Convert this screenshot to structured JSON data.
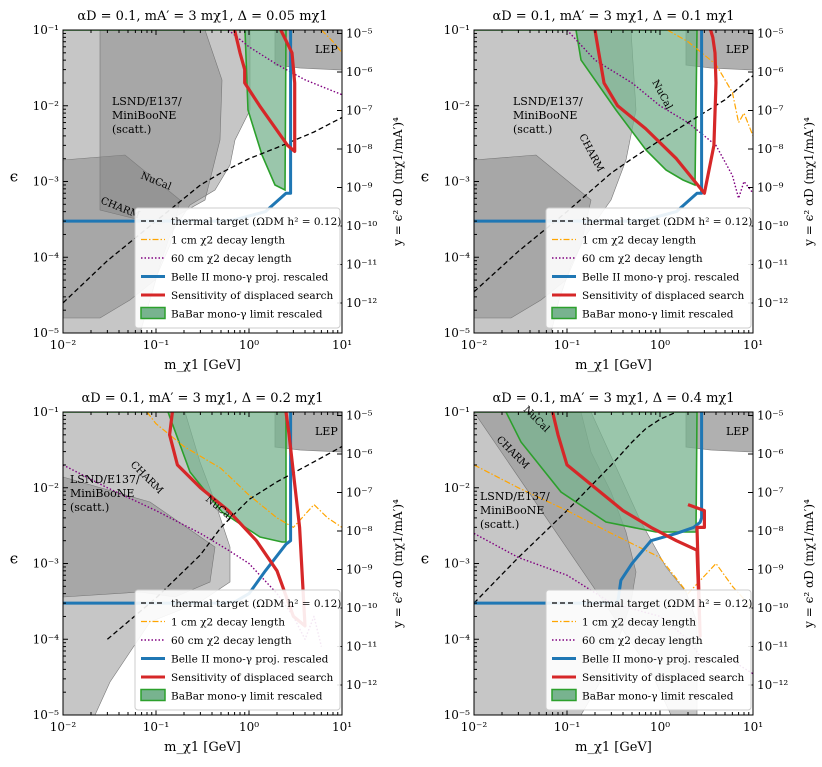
{
  "colors": {
    "belle": "#1f77b4",
    "displaced": "#d62728",
    "babar_fill": "#78b38f",
    "babar_edge": "#2ca02c",
    "thermal": "#000000",
    "decay1": "#ffa500",
    "decay60": "#800080",
    "excluded": "#808080",
    "lep": "#b0b0b0"
  },
  "common": {
    "xlabel": "m_χ1 [GeV]",
    "ylabel_left": "ϵ",
    "ylabel_right": "y = ϵ² αD (mχ1/mA′)⁴",
    "x_ticks": [
      "10⁻²",
      "10⁻¹",
      "10⁰",
      "10¹"
    ],
    "y_ticks": [
      "10⁻⁵",
      "10⁻⁴",
      "10⁻³",
      "10⁻²",
      "10⁻¹"
    ],
    "y2_ticks": [
      "10⁻¹²",
      "10⁻¹¹",
      "10⁻¹⁰",
      "10⁻⁹",
      "10⁻⁸",
      "10⁻⁷",
      "10⁻⁶",
      "10⁻⁵"
    ],
    "region_labels": {
      "lsnd": [
        "LSND/E137/",
        "MiniBooNE",
        "(scatt.)"
      ],
      "charm": "CHARM",
      "nucal": "NuCal",
      "lep": "LEP"
    },
    "legend": [
      {
        "label": "thermal target (ΩDM h² = 0.12)",
        "style": "dashed-black"
      },
      {
        "label": "1 cm χ2 decay length",
        "style": "dashdot-orange"
      },
      {
        "label": "60 cm χ2 decay length",
        "style": "dotted-purple"
      },
      {
        "label": "Belle II mono-γ proj. rescaled",
        "style": "solid-blue"
      },
      {
        "label": "Sensitivity of displaced search",
        "style": "solid-red"
      },
      {
        "label": "BaBar mono-γ limit rescaled",
        "style": "green-fill"
      }
    ]
  },
  "chart_data": [
    {
      "type": "line",
      "title": "αD = 0.1, mA′ = 3 mχ1, Δ = 0.05 mχ1",
      "xscale": "log",
      "yscale": "log",
      "xlim": [
        0.01,
        10
      ],
      "ylim": [
        1e-05,
        0.1
      ],
      "series": [
        {
          "name": "thermal target",
          "x": [
            0.01,
            0.03,
            0.1,
            0.3,
            0.5,
            1,
            2,
            5,
            10
          ],
          "y": [
            2.5e-05,
            9e-05,
            0.0003,
            0.0009,
            0.0013,
            0.002,
            0.0028,
            0.0045,
            0.007
          ]
        },
        {
          "name": "1 cm χ2 decay length",
          "x": [
            6,
            8,
            10
          ],
          "y": [
            0.1,
            0.07,
            0.05
          ]
        },
        {
          "name": "60 cm χ2 decay length",
          "x": [
            0.6,
            1,
            2,
            4,
            10
          ],
          "y": [
            0.1,
            0.06,
            0.035,
            0.022,
            0.014
          ]
        },
        {
          "name": "Belle II mono-γ",
          "x": [
            0.01,
            0.5,
            0.7,
            1,
            1.5,
            2.5,
            2.8,
            2.8
          ],
          "y": [
            0.0003,
            0.0003,
            0.00031,
            0.00035,
            0.0004,
            0.0007,
            0.0007,
            0.1
          ]
        },
        {
          "name": "displaced search",
          "x": [
            0.7,
            0.8,
            0.9,
            0.9,
            1.3,
            2.6,
            3.1,
            3.1,
            2.9,
            2.4,
            2.2
          ],
          "y": [
            0.1,
            0.05,
            0.03,
            0.02,
            0.01,
            0.003,
            0.0025,
            0.02,
            0.05,
            0.08,
            0.1
          ]
        }
      ]
    },
    {
      "type": "line",
      "title": "αD = 0.1, mA′ = 3 mχ1, Δ = 0.1 mχ1",
      "xscale": "log",
      "yscale": "log",
      "xlim": [
        0.01,
        10
      ],
      "ylim": [
        1e-05,
        0.1
      ],
      "series": [
        {
          "name": "thermal target",
          "x": [
            0.01,
            0.03,
            0.1,
            0.3,
            0.5,
            1,
            2,
            5,
            10
          ],
          "y": [
            3.5e-05,
            0.00012,
            0.0004,
            0.0013,
            0.002,
            0.0035,
            0.006,
            0.012,
            0.025
          ]
        },
        {
          "name": "1 cm χ2 decay length",
          "x": [
            1.2,
            2,
            4,
            6,
            7,
            8,
            10
          ],
          "y": [
            0.1,
            0.07,
            0.035,
            0.015,
            0.006,
            0.008,
            0.004
          ]
        },
        {
          "name": "60 cm χ2 decay length",
          "x": [
            0.1,
            0.2,
            0.5,
            1,
            2,
            4,
            6,
            7,
            8,
            10
          ],
          "y": [
            0.1,
            0.04,
            0.02,
            0.01,
            0.006,
            0.003,
            0.0012,
            0.0006,
            0.001,
            0.0007
          ]
        },
        {
          "name": "Belle II mono-γ",
          "x": [
            0.01,
            0.5,
            0.7,
            1,
            1.5,
            2.5,
            2.8,
            2.8
          ],
          "y": [
            0.0003,
            0.0003,
            0.00031,
            0.00035,
            0.0004,
            0.0007,
            0.0007,
            0.1
          ]
        },
        {
          "name": "displaced search",
          "x": [
            0.2,
            0.22,
            0.25,
            0.35,
            0.7,
            1.5,
            3,
            3.8,
            4,
            3.9,
            3.7,
            3.5
          ],
          "y": [
            0.1,
            0.05,
            0.02,
            0.01,
            0.005,
            0.002,
            0.0007,
            0.003,
            0.02,
            0.05,
            0.08,
            0.1
          ]
        }
      ]
    },
    {
      "type": "line",
      "title": "αD = 0.1, mA′ = 3 mχ1, Δ = 0.2 mχ1",
      "xscale": "log",
      "yscale": "log",
      "xlim": [
        0.01,
        10
      ],
      "ylim": [
        1e-05,
        0.1
      ],
      "series": [
        {
          "name": "thermal target",
          "x": [
            0.03,
            0.1,
            0.3,
            0.5,
            1,
            2,
            5,
            10
          ],
          "y": [
            0.0001,
            0.00035,
            0.0013,
            0.003,
            0.007,
            0.012,
            0.022,
            0.035
          ]
        },
        {
          "name": "1 cm χ2 decay length",
          "x": [
            0.08,
            0.1,
            0.2,
            0.5,
            1,
            2,
            3,
            5,
            7,
            10
          ],
          "y": [
            0.1,
            0.07,
            0.035,
            0.018,
            0.008,
            0.004,
            0.003,
            0.006,
            0.004,
            0.003
          ]
        },
        {
          "name": "60 cm χ2 decay length",
          "x": [
            0.01,
            0.03,
            0.1,
            0.3,
            0.6,
            1,
            2,
            3,
            4,
            5,
            6
          ],
          "y": [
            0.02,
            0.01,
            0.005,
            0.0025,
            0.0015,
            0.001,
            0.0004,
            0.0002,
            0.0001,
            0.0002,
            8e-05
          ]
        },
        {
          "name": "Belle II mono-γ",
          "x": [
            0.01,
            0.5,
            0.7,
            1,
            1.5,
            2.5,
            2.8,
            2.8
          ],
          "y": [
            0.0003,
            0.0003,
            0.00031,
            0.0004,
            0.0008,
            0.0018,
            0.002,
            0.1
          ]
        },
        {
          "name": "displaced search",
          "x": [
            0.15,
            0.14,
            0.17,
            0.3,
            0.6,
            1.2,
            2,
            3,
            4,
            3.5,
            2.7,
            2.5
          ],
          "y": [
            0.1,
            0.05,
            0.02,
            0.01,
            0.005,
            0.002,
            0.0008,
            0.0002,
            0.00015,
            0.003,
            0.05,
            0.1
          ]
        }
      ]
    },
    {
      "type": "line",
      "title": "αD = 0.1, mA′ = 3 mχ1, Δ = 0.4 mχ1",
      "xscale": "log",
      "yscale": "log",
      "xlim": [
        0.01,
        10
      ],
      "ylim": [
        1e-05,
        0.1
      ],
      "series": [
        {
          "name": "thermal target",
          "x": [
            0.01,
            0.03,
            0.1,
            0.3,
            0.5,
            0.7,
            1,
            1.5
          ],
          "y": [
            0.0003,
            0.0012,
            0.005,
            0.02,
            0.04,
            0.06,
            0.08,
            0.1
          ]
        },
        {
          "name": "1 cm χ2 decay length",
          "x": [
            0.01,
            0.03,
            0.1,
            0.3,
            1,
            2,
            4,
            6,
            10
          ],
          "y": [
            0.02,
            0.01,
            0.005,
            0.0025,
            0.0012,
            0.0004,
            0.001,
            0.0005,
            0.00025
          ]
        },
        {
          "name": "60 cm χ2 decay length",
          "x": [
            0.01,
            0.03,
            0.1,
            0.3,
            1,
            2,
            3,
            5,
            10
          ],
          "y": [
            0.0025,
            0.0012,
            0.0007,
            0.0003,
            0.0002,
            0.0001,
            5e-05,
            6e-05,
            3.5e-05
          ]
        },
        {
          "name": "Belle II mono-γ",
          "x": [
            0.01,
            0.35,
            0.38,
            0.5,
            0.8,
            1.5,
            2.3,
            2.7,
            2.8,
            2.8
          ],
          "y": [
            0.0003,
            0.0003,
            0.0006,
            0.001,
            0.002,
            0.0025,
            0.003,
            0.0035,
            0.004,
            0.1
          ]
        },
        {
          "name": "displaced search",
          "x": [
            0.07,
            0.08,
            0.1,
            0.2,
            0.4,
            0.8,
            1.5,
            2.5,
            2.7,
            2.5,
            3,
            3,
            2
          ],
          "y": [
            0.1,
            0.05,
            0.02,
            0.01,
            0.005,
            0.003,
            0.002,
            0.0015,
            0.00011,
            0.003,
            0.003,
            0.005,
            0.006
          ]
        }
      ]
    }
  ]
}
